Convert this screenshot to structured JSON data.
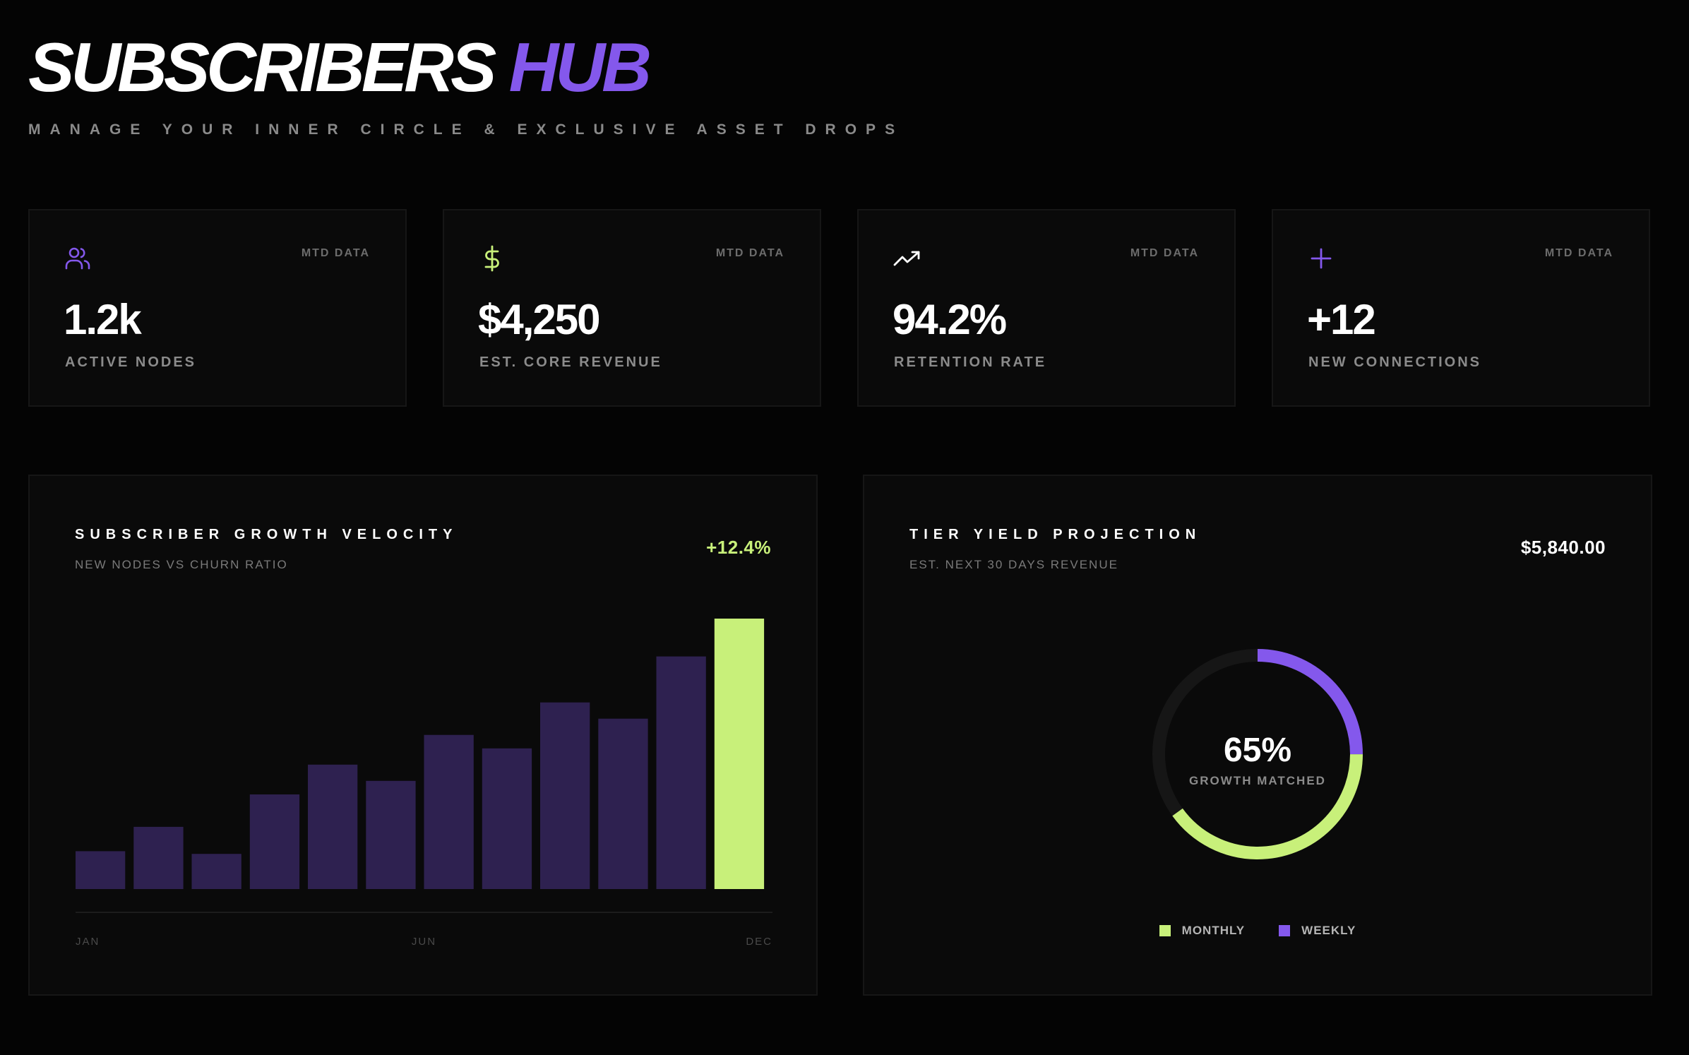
{
  "header": {
    "title_primary": "SUBSCRIBERS",
    "title_accent": "HUB",
    "subtitle": "MANAGE YOUR INNER CIRCLE & EXCLUSIVE ASSET DROPS"
  },
  "stats": [
    {
      "icon": "users-icon",
      "tag": "MTD DATA",
      "value": "1.2k",
      "label": "ACTIVE NODES"
    },
    {
      "icon": "dollar-icon",
      "tag": "MTD DATA",
      "value": "$4,250",
      "label": "EST. CORE REVENUE"
    },
    {
      "icon": "trending-up-icon",
      "tag": "MTD DATA",
      "value": "94.2%",
      "label": "RETENTION RATE"
    },
    {
      "icon": "plus-icon",
      "tag": "MTD DATA",
      "value": "+12",
      "label": "NEW CONNECTIONS"
    }
  ],
  "colors": {
    "accent_purple": "#8458ec",
    "accent_green": "#c8f07a",
    "bar_muted": "#2e2150",
    "ring_track": "#161616"
  },
  "growth_panel": {
    "title": "SUBSCRIBER GROWTH VELOCITY",
    "subtitle": "NEW NODES VS CHURN RATIO",
    "metric": "+12.4%"
  },
  "yield_panel": {
    "title": "TIER YIELD PROJECTION",
    "subtitle": "EST. NEXT 30 DAYS REVENUE",
    "metric": "$5,840.00",
    "center_value": "65%",
    "center_label": "GROWTH MATCHED"
  },
  "chart_data": [
    {
      "type": "bar",
      "categories": [
        "",
        "",
        "",
        "",
        "",
        "",
        "",
        "",
        "",
        "",
        "",
        ""
      ],
      "values": [
        14,
        23,
        13,
        35,
        46,
        40,
        57,
        52,
        69,
        63,
        86,
        100
      ],
      "highlight_index": 11,
      "tick_labels": [
        "JAN",
        "JUN",
        "DEC"
      ],
      "ylim": [
        0,
        100
      ],
      "title": "SUBSCRIBER GROWTH VELOCITY",
      "xlabel": "",
      "ylabel": ""
    },
    {
      "type": "pie",
      "labels": [
        "MONTHLY",
        "WEEKLY"
      ],
      "values": [
        40,
        25
      ],
      "colors": [
        "#c8f07a",
        "#8458ec"
      ],
      "total": 100,
      "title": "TIER YIELD PROJECTION"
    }
  ]
}
